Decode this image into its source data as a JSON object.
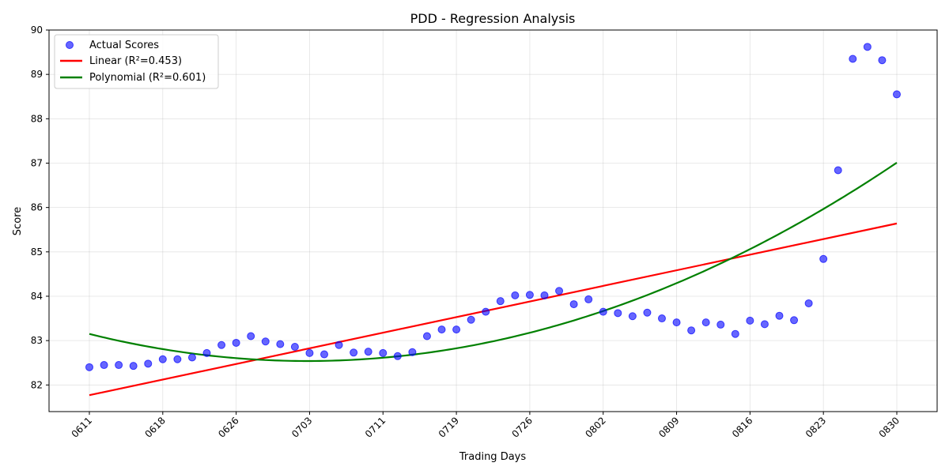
{
  "chart_data": {
    "type": "scatter",
    "title": "PDD - Regression Analysis",
    "xlabel": "Trading Days",
    "ylabel": "Score",
    "ylim": [
      81.4,
      90
    ],
    "y_ticks": [
      82,
      83,
      84,
      85,
      86,
      87,
      88,
      89,
      90
    ],
    "x_tick_labels": [
      "0611",
      "0618",
      "0626",
      "0703",
      "0711",
      "0719",
      "0726",
      "0802",
      "0809",
      "0816",
      "0823",
      "0830"
    ],
    "grid": true,
    "legend_position": "top-left",
    "series": [
      {
        "name": "Actual Scores",
        "kind": "points",
        "color": "#0000ff",
        "values": [
          82.4,
          82.45,
          82.45,
          82.43,
          82.48,
          82.58,
          82.58,
          82.62,
          82.72,
          82.9,
          82.95,
          83.1,
          82.98,
          82.92,
          82.86,
          82.72,
          82.69,
          82.9,
          82.73,
          82.75,
          82.72,
          82.65,
          82.74,
          83.1,
          83.25,
          83.25,
          83.47,
          83.65,
          83.89,
          84.02,
          84.03,
          84.02,
          84.12,
          83.82,
          83.93,
          83.65,
          83.62,
          83.55,
          83.63,
          83.5,
          83.41,
          83.23,
          83.41,
          83.36,
          83.15,
          83.45,
          83.37,
          83.56,
          83.46,
          83.84,
          84.84,
          86.84,
          89.35,
          89.62,
          89.32,
          88.55
        ]
      },
      {
        "name": "Linear (R²=0.453)",
        "kind": "line",
        "color": "#ff0000",
        "start": 81.77,
        "end": 85.64
      },
      {
        "name": "Polynomial (R²=0.601)",
        "kind": "curve",
        "color": "#008000",
        "points": [
          [
            0,
            83.15
          ],
          [
            15,
            82.54
          ],
          [
            55,
            87.01
          ]
        ]
      }
    ]
  }
}
